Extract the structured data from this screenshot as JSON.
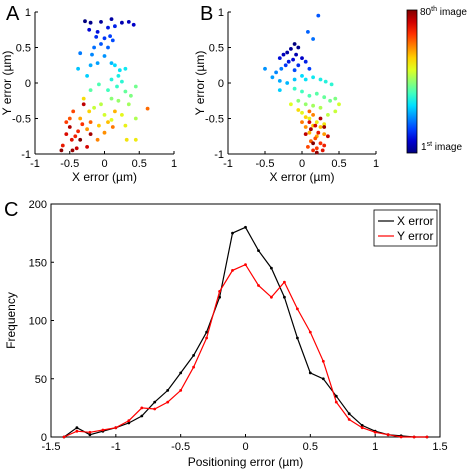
{
  "panels": {
    "A": "A",
    "B": "B",
    "C": "C"
  },
  "colorbar": {
    "top_label": "80th image",
    "bottom_label": "1st image",
    "top_label_parts": [
      "80",
      "th",
      " image"
    ],
    "bottom_label_parts": [
      "1",
      "st",
      " image"
    ],
    "colors": [
      "#00007f",
      "#0000d0",
      "#0040ff",
      "#0090ff",
      "#00e0ff",
      "#40ffbf",
      "#90ff70",
      "#e0ff20",
      "#ffd000",
      "#ff8000",
      "#ff3000",
      "#d00000",
      "#800000"
    ]
  },
  "chart_data": [
    {
      "panel": "A",
      "type": "scatter",
      "xlabel": "X error (µm)",
      "ylabel": "Y error (µm)",
      "xlim": [
        -1,
        1
      ],
      "ylim": [
        -1,
        1
      ],
      "xticks": [
        "-1",
        "-0.5",
        "0",
        "0.5",
        "1"
      ],
      "yticks": [
        "-1",
        "-0.5",
        "0",
        "0.5",
        "1"
      ],
      "points": [
        [
          -0.28,
          0.87,
          0
        ],
        [
          -0.2,
          0.85,
          1
        ],
        [
          -0.05,
          0.86,
          2
        ],
        [
          0.1,
          0.9,
          3
        ],
        [
          0.25,
          0.85,
          4
        ],
        [
          0.35,
          0.86,
          5
        ],
        [
          0.42,
          0.82,
          6
        ],
        [
          -0.22,
          0.75,
          7
        ],
        [
          -0.1,
          0.72,
          8
        ],
        [
          0.05,
          0.78,
          9
        ],
        [
          0.15,
          0.8,
          10
        ],
        [
          -0.12,
          0.65,
          11
        ],
        [
          0.0,
          0.63,
          12
        ],
        [
          0.08,
          0.66,
          13
        ],
        [
          0.12,
          0.6,
          14
        ],
        [
          -0.05,
          0.55,
          15
        ],
        [
          0.05,
          0.5,
          16
        ],
        [
          -0.15,
          0.5,
          17
        ],
        [
          -0.35,
          0.42,
          18
        ],
        [
          -0.18,
          0.4,
          19
        ],
        [
          0.0,
          0.38,
          20
        ],
        [
          -0.1,
          0.28,
          21
        ],
        [
          -0.2,
          0.25,
          22
        ],
        [
          0.1,
          0.28,
          23
        ],
        [
          -0.38,
          0.2,
          24
        ],
        [
          -0.25,
          0.1,
          25
        ],
        [
          0.15,
          0.25,
          26
        ],
        [
          0.22,
          0.18,
          27
        ],
        [
          0.3,
          0.2,
          28
        ],
        [
          0.2,
          0.1,
          29
        ],
        [
          0.1,
          0.05,
          30
        ],
        [
          0.25,
          0.02,
          31
        ],
        [
          0.18,
          -0.05,
          32
        ],
        [
          0.05,
          -0.1,
          33
        ],
        [
          -0.08,
          -0.02,
          34
        ],
        [
          -0.2,
          -0.1,
          35
        ],
        [
          0.3,
          -0.12,
          36
        ],
        [
          0.45,
          -0.05,
          37
        ],
        [
          0.38,
          -0.18,
          38
        ],
        [
          0.1,
          -0.22,
          39
        ],
        [
          0.2,
          -0.25,
          40
        ],
        [
          0.35,
          -0.3,
          41
        ],
        [
          0.45,
          -0.5,
          42
        ],
        [
          -0.05,
          -0.3,
          43
        ],
        [
          -0.15,
          -0.35,
          44
        ],
        [
          0.0,
          -0.45,
          45
        ],
        [
          0.1,
          -0.52,
          46
        ],
        [
          0.25,
          -0.45,
          47
        ],
        [
          0.3,
          -0.6,
          48
        ],
        [
          0.45,
          -0.8,
          49
        ],
        [
          0.32,
          -0.8,
          50
        ],
        [
          -0.3,
          -0.22,
          51
        ],
        [
          -0.22,
          -0.4,
          52
        ],
        [
          -0.08,
          -0.6,
          53
        ],
        [
          0.05,
          -0.55,
          54
        ],
        [
          0.15,
          -0.4,
          55
        ],
        [
          -0.35,
          -0.5,
          56
        ],
        [
          -0.25,
          -0.65,
          57
        ],
        [
          0.0,
          -0.7,
          58
        ],
        [
          -0.1,
          -0.8,
          59
        ],
        [
          0.12,
          -0.62,
          60
        ],
        [
          0.62,
          -0.36,
          61
        ],
        [
          -0.2,
          -0.55,
          62
        ],
        [
          -0.5,
          -0.5,
          63
        ],
        [
          -0.45,
          -0.4,
          64
        ],
        [
          -0.55,
          -0.55,
          65
        ],
        [
          -0.32,
          -0.58,
          66
        ],
        [
          -0.38,
          -0.68,
          67
        ],
        [
          -0.42,
          -0.75,
          68
        ],
        [
          -0.6,
          -0.88,
          69
        ],
        [
          -0.47,
          -0.8,
          70
        ],
        [
          -0.55,
          -0.72,
          71
        ],
        [
          -0.25,
          -0.9,
          72
        ],
        [
          -0.4,
          -0.92,
          73
        ],
        [
          -0.3,
          -0.3,
          74
        ],
        [
          -0.5,
          -0.62,
          75
        ],
        [
          -0.2,
          -0.72,
          76
        ],
        [
          -0.46,
          -0.95,
          77
        ],
        [
          -0.62,
          -0.95,
          78
        ],
        [
          -0.35,
          -0.8,
          79
        ]
      ]
    },
    {
      "panel": "B",
      "type": "scatter",
      "xlabel": "X error (µm)",
      "ylabel": "Y error (µm)",
      "xlim": [
        -1,
        1
      ],
      "ylim": [
        -1,
        1
      ],
      "xticks": [
        "-1",
        "-0.5",
        "0",
        "0.5",
        "1"
      ],
      "yticks": [
        "-1",
        "-0.5",
        "0",
        "0.5",
        "1"
      ],
      "points": [
        [
          -0.1,
          0.55,
          0
        ],
        [
          -0.05,
          0.5,
          1
        ],
        [
          -0.15,
          0.48,
          2
        ],
        [
          -0.2,
          0.43,
          3
        ],
        [
          -0.08,
          0.4,
          4
        ],
        [
          -0.25,
          0.4,
          5
        ],
        [
          0.0,
          0.35,
          6
        ],
        [
          -0.12,
          0.33,
          7
        ],
        [
          -0.3,
          0.35,
          8
        ],
        [
          -0.18,
          0.3,
          9
        ],
        [
          0.05,
          0.3,
          10
        ],
        [
          -0.05,
          0.25,
          11
        ],
        [
          -0.22,
          0.25,
          12
        ],
        [
          0.1,
          0.2,
          13
        ],
        [
          -0.1,
          0.18,
          14
        ],
        [
          0.22,
          0.95,
          15
        ],
        [
          0.08,
          0.72,
          16
        ],
        [
          0.15,
          0.62,
          17
        ],
        [
          -0.28,
          0.2,
          18
        ],
        [
          -0.35,
          0.15,
          19
        ],
        [
          -0.5,
          0.2,
          20
        ],
        [
          -0.4,
          0.08,
          21
        ],
        [
          -0.3,
          0.03,
          22
        ],
        [
          -0.2,
          0.0,
          23
        ],
        [
          -0.1,
          0.05,
          24
        ],
        [
          -0.3,
          -0.1,
          25
        ],
        [
          0.0,
          0.1,
          26
        ],
        [
          0.05,
          0.05,
          27
        ],
        [
          0.15,
          0.08,
          28
        ],
        [
          0.25,
          0.05,
          29
        ],
        [
          0.32,
          0.02,
          30
        ],
        [
          0.4,
          -0.02,
          31
        ],
        [
          -0.1,
          -0.08,
          32
        ],
        [
          0.0,
          -0.12,
          33
        ],
        [
          0.1,
          -0.18,
          34
        ],
        [
          0.2,
          -0.15,
          35
        ],
        [
          0.3,
          -0.2,
          36
        ],
        [
          0.38,
          -0.25,
          37
        ],
        [
          0.45,
          -0.22,
          38
        ],
        [
          -0.05,
          -0.25,
          39
        ],
        [
          0.05,
          -0.3,
          40
        ],
        [
          0.15,
          -0.32,
          41
        ],
        [
          0.25,
          -0.35,
          42
        ],
        [
          0.35,
          -0.45,
          43
        ],
        [
          0.45,
          -0.4,
          44
        ],
        [
          0.5,
          -0.3,
          45
        ],
        [
          -0.15,
          -0.3,
          46
        ],
        [
          0.0,
          -0.42,
          47
        ],
        [
          0.1,
          -0.5,
          48
        ],
        [
          0.2,
          -0.55,
          49
        ],
        [
          0.3,
          -0.58,
          50
        ],
        [
          -0.05,
          -0.38,
          51
        ],
        [
          0.05,
          -0.48,
          52
        ],
        [
          0.15,
          -0.6,
          53
        ],
        [
          0.25,
          -0.62,
          54
        ],
        [
          0.1,
          -0.7,
          55
        ],
        [
          0.2,
          -0.75,
          56
        ],
        [
          0.3,
          -0.72,
          57
        ],
        [
          0.05,
          -0.62,
          58
        ],
        [
          0.15,
          -0.45,
          59
        ],
        [
          0.0,
          -0.55,
          60
        ],
        [
          0.1,
          -0.4,
          61
        ],
        [
          0.12,
          -0.82,
          62
        ],
        [
          0.18,
          -0.78,
          63
        ],
        [
          0.08,
          -0.9,
          64
        ],
        [
          0.2,
          -0.92,
          65
        ],
        [
          0.25,
          -0.85,
          66
        ],
        [
          0.15,
          -0.95,
          67
        ],
        [
          0.3,
          -0.88,
          68
        ],
        [
          0.22,
          -0.7,
          69
        ],
        [
          0.28,
          -0.95,
          70
        ],
        [
          0.1,
          -0.55,
          71
        ],
        [
          0.18,
          -0.6,
          72
        ],
        [
          0.35,
          -0.75,
          73
        ],
        [
          0.05,
          -0.72,
          74
        ],
        [
          0.25,
          -0.5,
          75
        ],
        [
          0.12,
          -0.65,
          76
        ],
        [
          0.3,
          -0.62,
          77
        ],
        [
          0.2,
          -0.98,
          78
        ],
        [
          0.15,
          -0.85,
          79
        ]
      ]
    },
    {
      "panel": "C",
      "type": "line",
      "xlabel": "Positioning error (µm)",
      "ylabel": "Frequency",
      "xlim": [
        -1.5,
        1.5
      ],
      "ylim": [
        0,
        200
      ],
      "xticks": [
        "-1.5",
        "-1",
        "-0.5",
        "0",
        "0.5",
        "1",
        "1.5"
      ],
      "yticks": [
        "0",
        "50",
        "100",
        "150",
        "200"
      ],
      "legend_position": "top-right",
      "series": [
        {
          "name": "X error",
          "color": "#000000",
          "x": [
            -1.4,
            -1.3,
            -1.2,
            -1.1,
            -1.0,
            -0.9,
            -0.8,
            -0.7,
            -0.6,
            -0.5,
            -0.4,
            -0.3,
            -0.2,
            -0.1,
            0.0,
            0.1,
            0.2,
            0.3,
            0.4,
            0.5,
            0.6,
            0.7,
            0.8,
            0.9,
            1.0,
            1.1,
            1.2,
            1.3,
            1.4
          ],
          "y": [
            0,
            8,
            2,
            5,
            8,
            12,
            18,
            30,
            40,
            55,
            70,
            90,
            120,
            175,
            180,
            160,
            145,
            120,
            85,
            55,
            50,
            35,
            20,
            10,
            5,
            2,
            1,
            0,
            0
          ]
        },
        {
          "name": "Y error",
          "color": "#ff0000",
          "x": [
            -1.4,
            -1.3,
            -1.2,
            -1.1,
            -1.0,
            -0.9,
            -0.8,
            -0.7,
            -0.6,
            -0.5,
            -0.4,
            -0.3,
            -0.2,
            -0.1,
            0.0,
            0.1,
            0.2,
            0.3,
            0.4,
            0.5,
            0.6,
            0.7,
            0.8,
            0.9,
            1.0,
            1.1,
            1.2,
            1.3,
            1.4
          ],
          "y": [
            0,
            5,
            4,
            6,
            8,
            14,
            25,
            24,
            30,
            40,
            60,
            85,
            125,
            143,
            148,
            130,
            120,
            133,
            110,
            90,
            65,
            30,
            15,
            8,
            4,
            2,
            0,
            0,
            0
          ]
        }
      ]
    }
  ]
}
